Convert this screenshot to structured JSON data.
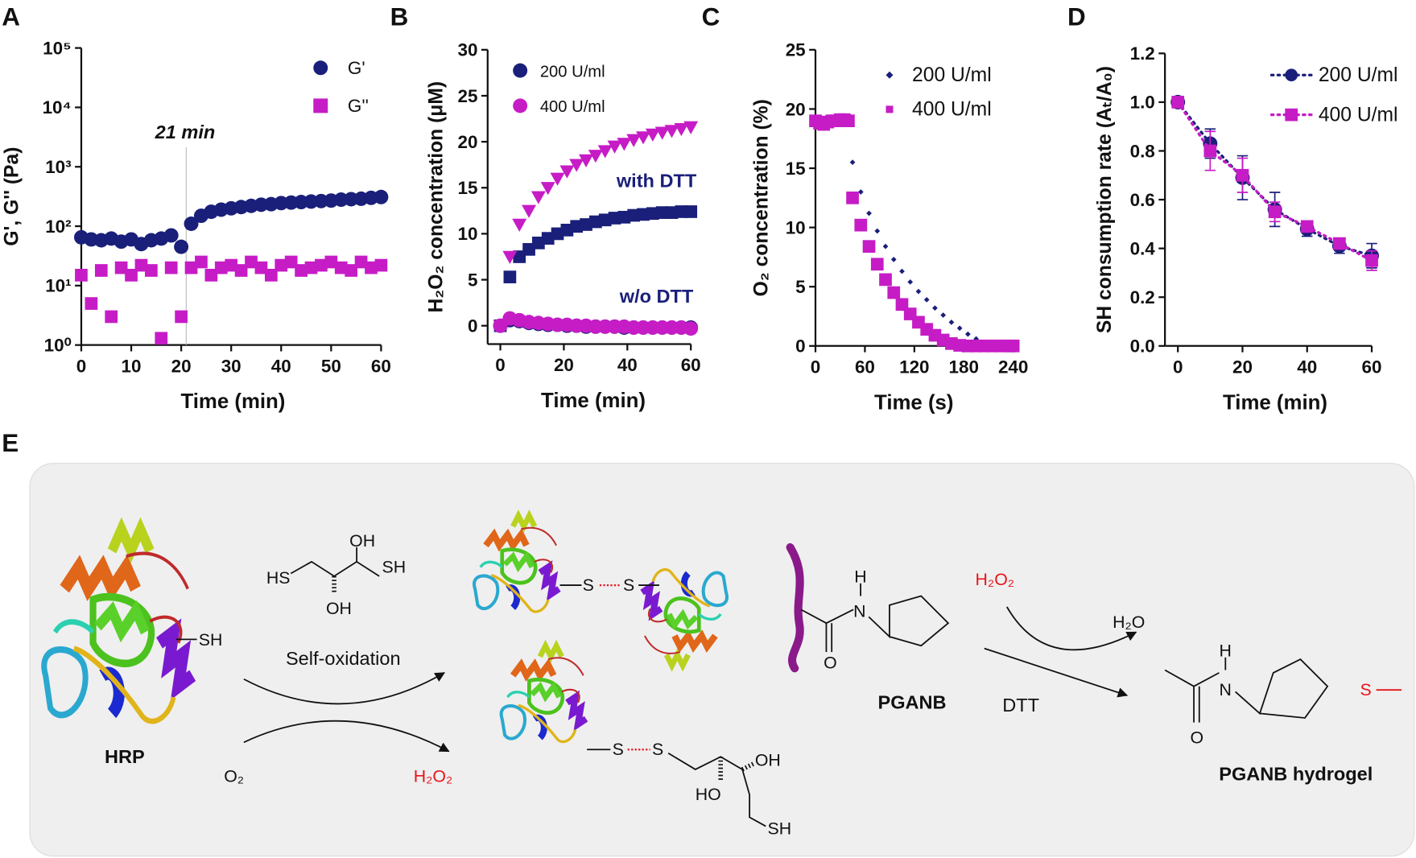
{
  "chart_data": [
    {
      "type": "scatter",
      "panel": "A",
      "log_y": true,
      "xlabel": "Time  (min)",
      "ylabel": "G', G'' (Pa)",
      "xlim": [
        0,
        60
      ],
      "xticks": [
        0,
        10,
        20,
        30,
        40,
        50,
        60
      ],
      "ylim": [
        1,
        100000
      ],
      "yticks": [
        {
          "value": 1,
          "label": "10⁰"
        },
        {
          "value": 10,
          "label": "10¹"
        },
        {
          "value": 100,
          "label": "10²"
        },
        {
          "value": 1000,
          "label": "10³"
        },
        {
          "value": 10000,
          "label": "10⁴"
        },
        {
          "value": 100000,
          "label": "10⁵"
        }
      ],
      "x": [
        0,
        2,
        4,
        6,
        8,
        10,
        12,
        14,
        16,
        18,
        20,
        22,
        24,
        26,
        28,
        30,
        32,
        34,
        36,
        38,
        40,
        42,
        44,
        46,
        48,
        50,
        52,
        54,
        56,
        58,
        60
      ],
      "series": [
        {
          "name": "G'",
          "color": "#1a1f7a",
          "marker": "circle",
          "values": [
            65,
            60,
            58,
            62,
            55,
            60,
            50,
            58,
            62,
            70,
            45,
            110,
            150,
            175,
            190,
            200,
            210,
            220,
            230,
            235,
            245,
            250,
            255,
            260,
            265,
            270,
            280,
            285,
            290,
            300,
            310
          ]
        },
        {
          "name": "G''",
          "color": "#c61cc6",
          "marker": "square",
          "values": [
            15,
            5,
            18,
            3,
            20,
            15,
            22,
            18,
            1.3,
            20,
            3,
            20,
            25,
            15,
            20,
            22,
            18,
            25,
            20,
            15,
            22,
            25,
            18,
            20,
            22,
            25,
            20,
            18,
            25,
            20,
            22
          ]
        }
      ],
      "annotations": [
        {
          "text": "21 min",
          "x": 21
        }
      ]
    },
    {
      "type": "scatter",
      "panel": "B",
      "xlabel": "Time (min)",
      "ylabel": "H₂O₂ concentration (μM)",
      "xlim": [
        -4,
        60
      ],
      "xticks": [
        0,
        20,
        40,
        60
      ],
      "ylim": [
        -2,
        30
      ],
      "yticks": [
        0,
        5,
        10,
        15,
        20,
        25,
        30
      ],
      "x": [
        0,
        3,
        6,
        9,
        12,
        15,
        18,
        21,
        24,
        27,
        30,
        33,
        36,
        39,
        42,
        45,
        48,
        51,
        54,
        57,
        60
      ],
      "legend": [
        {
          "name": "200 U/ml",
          "color": "#1a1f7a",
          "marker": "circle"
        },
        {
          "name": "400 U/ml",
          "color": "#c61cc6",
          "marker": "circle"
        }
      ],
      "series": [
        {
          "color": "#1a1f7a",
          "marker": "square",
          "values": [
            0,
            5.3,
            7.5,
            8.3,
            9,
            9.5,
            10,
            10.4,
            10.8,
            11,
            11.3,
            11.5,
            11.7,
            11.8,
            12,
            12.1,
            12.2,
            12.3,
            12.3,
            12.4,
            12.4
          ]
        },
        {
          "color": "#c61cc6",
          "marker": "triangle-down",
          "values": [
            0,
            7.5,
            11,
            12.5,
            14,
            15,
            16,
            16.8,
            17.5,
            18,
            18.5,
            19,
            19.5,
            19.8,
            20.2,
            20.5,
            20.8,
            21,
            21.2,
            21.4,
            21.6
          ]
        },
        {
          "color": "#1a1f7a",
          "marker": "circle",
          "values": [
            0,
            0.6,
            0.5,
            0.3,
            0.2,
            0.1,
            0.1,
            0,
            0,
            -0.1,
            -0.1,
            -0.1,
            -0.1,
            -0.2,
            -0.2,
            -0.2,
            -0.2,
            -0.2,
            -0.2,
            -0.2,
            -0.2
          ]
        },
        {
          "color": "#c61cc6",
          "marker": "circle",
          "values": [
            0,
            0.8,
            0.6,
            0.4,
            0.3,
            0.2,
            0.1,
            0.1,
            0,
            0,
            -0.1,
            -0.1,
            -0.1,
            -0.1,
            -0.2,
            -0.2,
            -0.2,
            -0.2,
            -0.2,
            -0.2,
            -0.3
          ]
        }
      ],
      "annotations": [
        {
          "text": "with DTT"
        },
        {
          "text": "w/o DTT"
        }
      ]
    },
    {
      "type": "scatter",
      "panel": "C",
      "xlabel": "Time (s)",
      "ylabel": "O₂ concentration (%)",
      "xlim": [
        0,
        240
      ],
      "xticks": [
        0,
        60,
        120,
        180,
        240
      ],
      "ylim": [
        0,
        25
      ],
      "yticks": [
        0,
        5,
        10,
        15,
        20,
        25
      ],
      "x": [
        0,
        5,
        10,
        15,
        20,
        25,
        30,
        35,
        40,
        45,
        55,
        65,
        75,
        85,
        95,
        105,
        115,
        125,
        135,
        145,
        155,
        165,
        175,
        185,
        195,
        205,
        215,
        225,
        235,
        240
      ],
      "series": [
        {
          "name": "200 U/ml",
          "color": "#1a1f7a",
          "marker": "diamond",
          "values": [
            19,
            18.9,
            18.9,
            19,
            19,
            19,
            19,
            19,
            19,
            15.5,
            13,
            11.2,
            9.7,
            8.4,
            7.3,
            6.3,
            5.4,
            4.6,
            3.9,
            3.2,
            2.6,
            2,
            1.5,
            1,
            0.6,
            0.3,
            0.1,
            0,
            0,
            0
          ]
        },
        {
          "name": "400 U/ml",
          "color": "#c61cc6",
          "marker": "square",
          "values": [
            19,
            18.8,
            18.7,
            18.9,
            19,
            19,
            19.1,
            19.1,
            19,
            12.5,
            10.2,
            8.4,
            6.9,
            5.6,
            4.5,
            3.5,
            2.7,
            2,
            1.4,
            0.9,
            0.5,
            0.2,
            0.05,
            0,
            0,
            0,
            0,
            0,
            0,
            0
          ]
        }
      ]
    },
    {
      "type": "scatter",
      "panel": "D",
      "xlabel": "Time (min)",
      "ylabel": "SH consumption rate (Aₜ/A₀)",
      "xlim": [
        -4,
        60
      ],
      "xticks": [
        0,
        20,
        40,
        60
      ],
      "ylim": [
        0,
        1.2
      ],
      "yticks": [
        {
          "value": 0,
          "label": "0.0"
        },
        {
          "value": 0.2,
          "label": "0.2"
        },
        {
          "value": 0.4,
          "label": "0.4"
        },
        {
          "value": 0.6,
          "label": "0.6"
        },
        {
          "value": 0.8,
          "label": "0.8"
        },
        {
          "value": 1,
          "label": "1.0"
        },
        {
          "value": 1.2,
          "label": "1.2"
        }
      ],
      "x": [
        0,
        10,
        20,
        30,
        40,
        50,
        60
      ],
      "series": [
        {
          "name": "200 U/ml",
          "color": "#1a1f7a",
          "marker": "circle",
          "line": "dotted",
          "values": [
            1,
            0.83,
            0.69,
            0.56,
            0.48,
            0.41,
            0.37
          ],
          "errors": [
            0,
            0.06,
            0.09,
            0.07,
            0.03,
            0.03,
            0.05
          ]
        },
        {
          "name": "400 U/ml",
          "color": "#c61cc6",
          "marker": "square",
          "line": "dotted",
          "values": [
            1,
            0.8,
            0.7,
            0.55,
            0.49,
            0.42,
            0.35
          ],
          "errors": [
            0,
            0.08,
            0.07,
            0.04,
            0.02,
            0.02,
            0.04
          ]
        }
      ]
    }
  ],
  "diagram": {
    "panel": "E",
    "labels": [
      "SH",
      "HRP",
      "HS",
      "OH",
      "OH",
      "SH",
      "Self-oxidation",
      "O₂",
      "H₂O₂",
      "S",
      "S",
      "S",
      "S",
      "OH",
      "HO",
      "SH",
      "H",
      "N",
      "O",
      "PGANB",
      "H₂O₂",
      "H₂O",
      "DTT",
      "H",
      "N",
      "O",
      "S",
      "PGANB hydrogel"
    ]
  }
}
